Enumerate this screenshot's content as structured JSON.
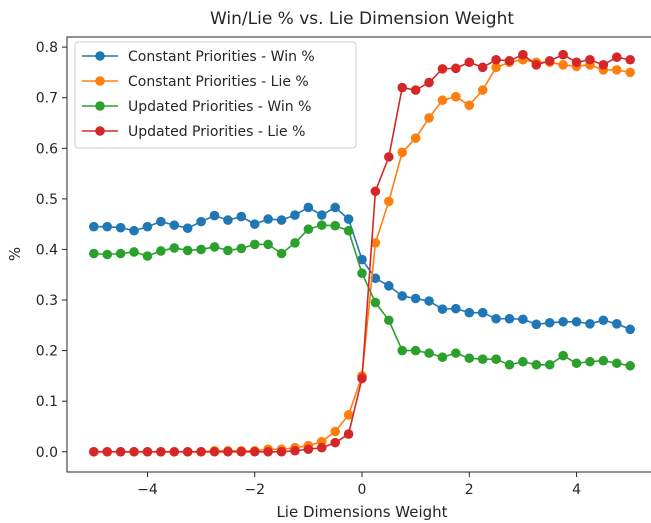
{
  "chart_data": {
    "type": "line",
    "title": "Win/Lie % vs. Lie Dimension Weight",
    "xlabel": "Lie Dimensions Weight",
    "ylabel": "%",
    "xlim": [
      -5.5,
      5.5
    ],
    "ylim": [
      -0.04,
      0.82
    ],
    "xticks": [
      -4,
      -2,
      0,
      2,
      4
    ],
    "xtick_labels": [
      "−4",
      "−2",
      "0",
      "2",
      "4"
    ],
    "yticks": [
      0.0,
      0.1,
      0.2,
      0.3,
      0.4,
      0.5,
      0.6,
      0.7,
      0.8
    ],
    "ytick_labels": [
      "0.0",
      "0.1",
      "0.2",
      "0.3",
      "0.4",
      "0.5",
      "0.6",
      "0.7",
      "0.8"
    ],
    "grid": false,
    "legend_position": "upper-left",
    "x": [
      -5.0,
      -4.75,
      -4.5,
      -4.25,
      -4.0,
      -3.75,
      -3.5,
      -3.25,
      -3.0,
      -2.75,
      -2.5,
      -2.25,
      -2.0,
      -1.75,
      -1.5,
      -1.25,
      -1.0,
      -0.75,
      -0.5,
      -0.25,
      0.0,
      0.25,
      0.5,
      0.75,
      1.0,
      1.25,
      1.5,
      1.75,
      2.0,
      2.25,
      2.5,
      2.75,
      3.0,
      3.25,
      3.5,
      3.75,
      4.0,
      4.25,
      4.5,
      4.75,
      5.0
    ],
    "series": [
      {
        "name": "Constant Priorities - Win %",
        "color": "#1f77b4",
        "values": [
          0.445,
          0.445,
          0.443,
          0.437,
          0.445,
          0.455,
          0.448,
          0.442,
          0.455,
          0.467,
          0.458,
          0.465,
          0.45,
          0.46,
          0.458,
          0.468,
          0.483,
          0.468,
          0.483,
          0.46,
          0.38,
          0.343,
          0.328,
          0.308,
          0.303,
          0.298,
          0.282,
          0.283,
          0.275,
          0.275,
          0.263,
          0.263,
          0.262,
          0.252,
          0.255,
          0.257,
          0.257,
          0.253,
          0.26,
          0.253,
          0.242
        ]
      },
      {
        "name": "Constant Priorities - Lie %",
        "color": "#ff7f0e",
        "values": [
          0.0,
          0.0,
          0.0,
          0.0,
          0.0,
          0.0,
          0.0,
          0.0,
          0.0,
          0.002,
          0.002,
          0.002,
          0.002,
          0.005,
          0.005,
          0.008,
          0.012,
          0.02,
          0.04,
          0.073,
          0.15,
          0.413,
          0.495,
          0.592,
          0.62,
          0.66,
          0.695,
          0.702,
          0.685,
          0.715,
          0.76,
          0.77,
          0.775,
          0.77,
          0.77,
          0.765,
          0.762,
          0.765,
          0.755,
          0.755,
          0.75
        ]
      },
      {
        "name": "Updated Priorities - Win %",
        "color": "#2ca02c",
        "values": [
          0.392,
          0.39,
          0.392,
          0.395,
          0.387,
          0.397,
          0.403,
          0.398,
          0.4,
          0.405,
          0.398,
          0.402,
          0.41,
          0.41,
          0.392,
          0.413,
          0.44,
          0.448,
          0.447,
          0.437,
          0.353,
          0.295,
          0.26,
          0.2,
          0.2,
          0.195,
          0.187,
          0.195,
          0.185,
          0.183,
          0.183,
          0.172,
          0.178,
          0.172,
          0.172,
          0.19,
          0.175,
          0.178,
          0.18,
          0.175,
          0.17
        ]
      },
      {
        "name": "Updated Priorities - Lie %",
        "color": "#d62728",
        "values": [
          0.0,
          0.0,
          0.0,
          0.0,
          0.0,
          0.0,
          0.0,
          0.0,
          0.0,
          0.0,
          0.0,
          0.0,
          0.0,
          0.0,
          0.0,
          0.002,
          0.005,
          0.008,
          0.018,
          0.035,
          0.145,
          0.515,
          0.583,
          0.72,
          0.715,
          0.73,
          0.757,
          0.758,
          0.77,
          0.76,
          0.775,
          0.773,
          0.785,
          0.765,
          0.773,
          0.785,
          0.77,
          0.775,
          0.765,
          0.78,
          0.775
        ]
      }
    ]
  }
}
